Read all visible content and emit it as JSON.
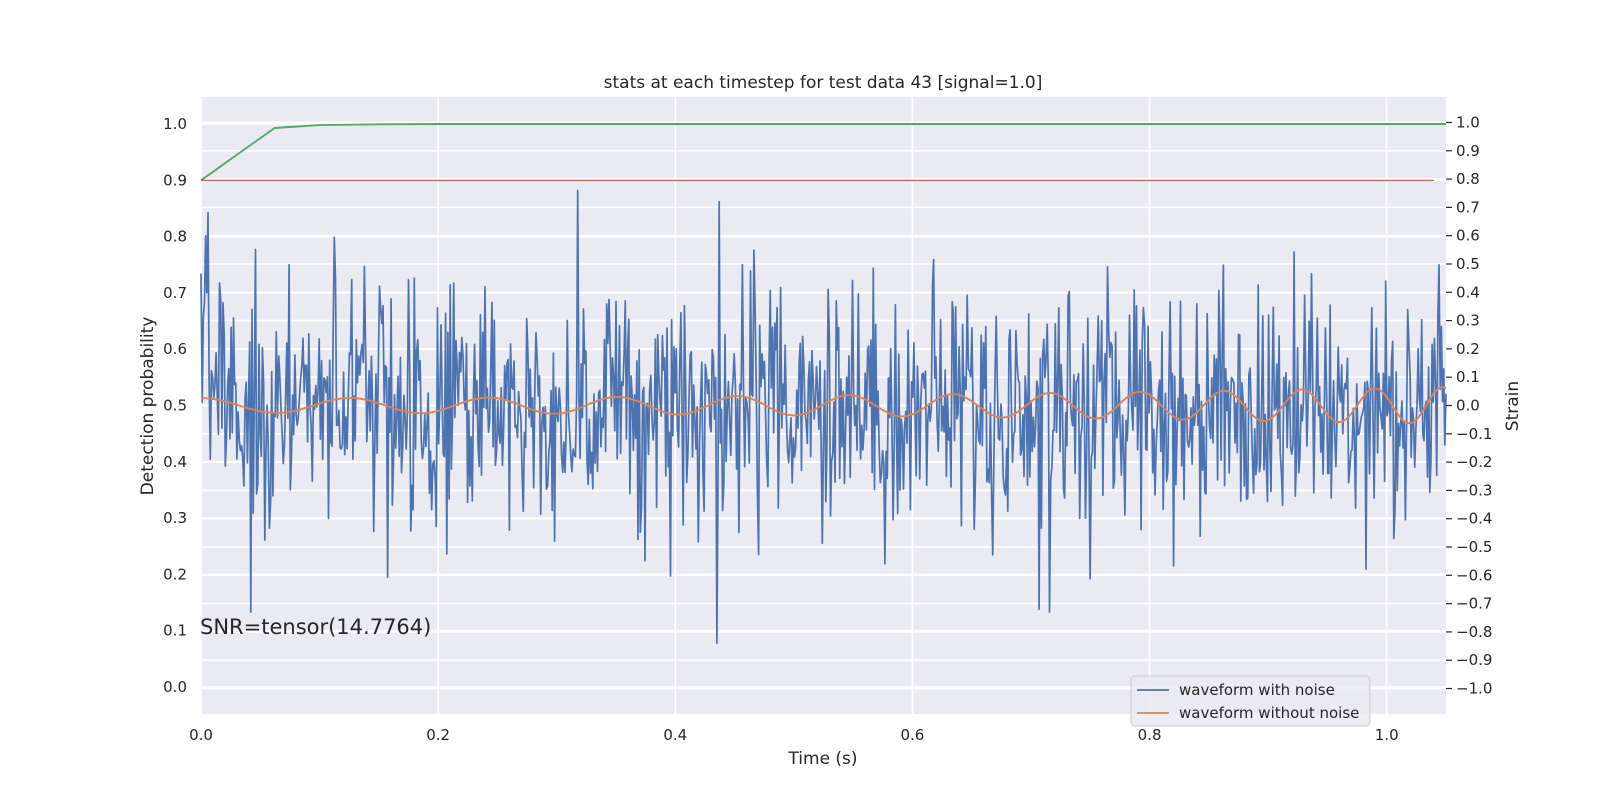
{
  "chart_data": {
    "type": "line",
    "title": "stats at each timestep for test data 43 [signal=1.0]",
    "xlabel": "Time (s)",
    "ylabel_left": "Detection probability",
    "ylabel_right": "Strain",
    "xlim": [
      0.0,
      1.05
    ],
    "ylim_left": [
      -0.048,
      1.048
    ],
    "ylim_right": [
      -1.09,
      1.09
    ],
    "x_ticks": [
      0.0,
      0.2,
      0.4,
      0.6,
      0.8,
      1.0
    ],
    "x_tick_labels": [
      "0.0",
      "0.2",
      "0.4",
      "0.6",
      "0.8",
      "1.0"
    ],
    "y_left_ticks": [
      0.0,
      0.1,
      0.2,
      0.3,
      0.4,
      0.5,
      0.6,
      0.7,
      0.8,
      0.9,
      1.0
    ],
    "y_left_tick_labels": [
      "0.0",
      "0.1",
      "0.2",
      "0.3",
      "0.4",
      "0.5",
      "0.6",
      "0.7",
      "0.8",
      "0.9",
      "1.0"
    ],
    "y_right_ticks": [
      -1.0,
      -0.9,
      -0.8,
      -0.7,
      -0.6,
      -0.5,
      -0.4,
      -0.3,
      -0.2,
      -0.1,
      0.0,
      0.1,
      0.2,
      0.3,
      0.4,
      0.5,
      0.6,
      0.7,
      0.8,
      0.9,
      1.0
    ],
    "y_right_tick_labels": [
      "−1.0",
      "−0.9",
      "−0.8",
      "−0.7",
      "−0.6",
      "−0.5",
      "−0.4",
      "−0.3",
      "−0.2",
      "−0.1",
      "0.0",
      "0.1",
      "0.2",
      "0.3",
      "0.4",
      "0.5",
      "0.6",
      "0.7",
      "0.8",
      "0.9",
      "1.0"
    ],
    "grid": true,
    "legend_position": "lower-right",
    "annotation": "SNR=tensor(14.7764)",
    "colors": {
      "background": "#eaeaf2",
      "grid": "#ffffff",
      "noisy": "#4c72b0",
      "clean": "#dd8452",
      "probability": "#55a868",
      "threshold": "#c44e52"
    },
    "series": [
      {
        "name": "waveform with noise",
        "axis": "right",
        "style": "noise",
        "x_range": [
          0.0,
          1.05
        ],
        "n_points": 1075,
        "amplitude_std": 0.21,
        "extremes": [
          {
            "x": 0.004,
            "y": 0.6
          },
          {
            "x": 0.042,
            "y": -0.73
          },
          {
            "x": 0.318,
            "y": 0.76
          },
          {
            "x": 0.435,
            "y": -0.84
          },
          {
            "x": 0.437,
            "y": 0.72
          },
          {
            "x": 0.707,
            "y": -0.72
          },
          {
            "x": 0.716,
            "y": -0.73
          }
        ]
      },
      {
        "name": "waveform without noise",
        "axis": "right",
        "style": "chirp",
        "x_range": [
          0.0,
          1.05
        ],
        "amplitude_start": 0.026,
        "amplitude_end": 0.065,
        "period_start": 0.13,
        "period_end": 0.055
      },
      {
        "axis": "left",
        "x": [
          0.0,
          0.03,
          0.062,
          0.1,
          0.15,
          0.2,
          1.05
        ],
        "y": [
          0.9,
          0.945,
          0.993,
          0.998,
          0.9995,
          1.0,
          1.0
        ]
      },
      {
        "axis": "left",
        "x": [
          0.0,
          1.04
        ],
        "y": [
          0.9,
          0.9
        ]
      }
    ]
  }
}
